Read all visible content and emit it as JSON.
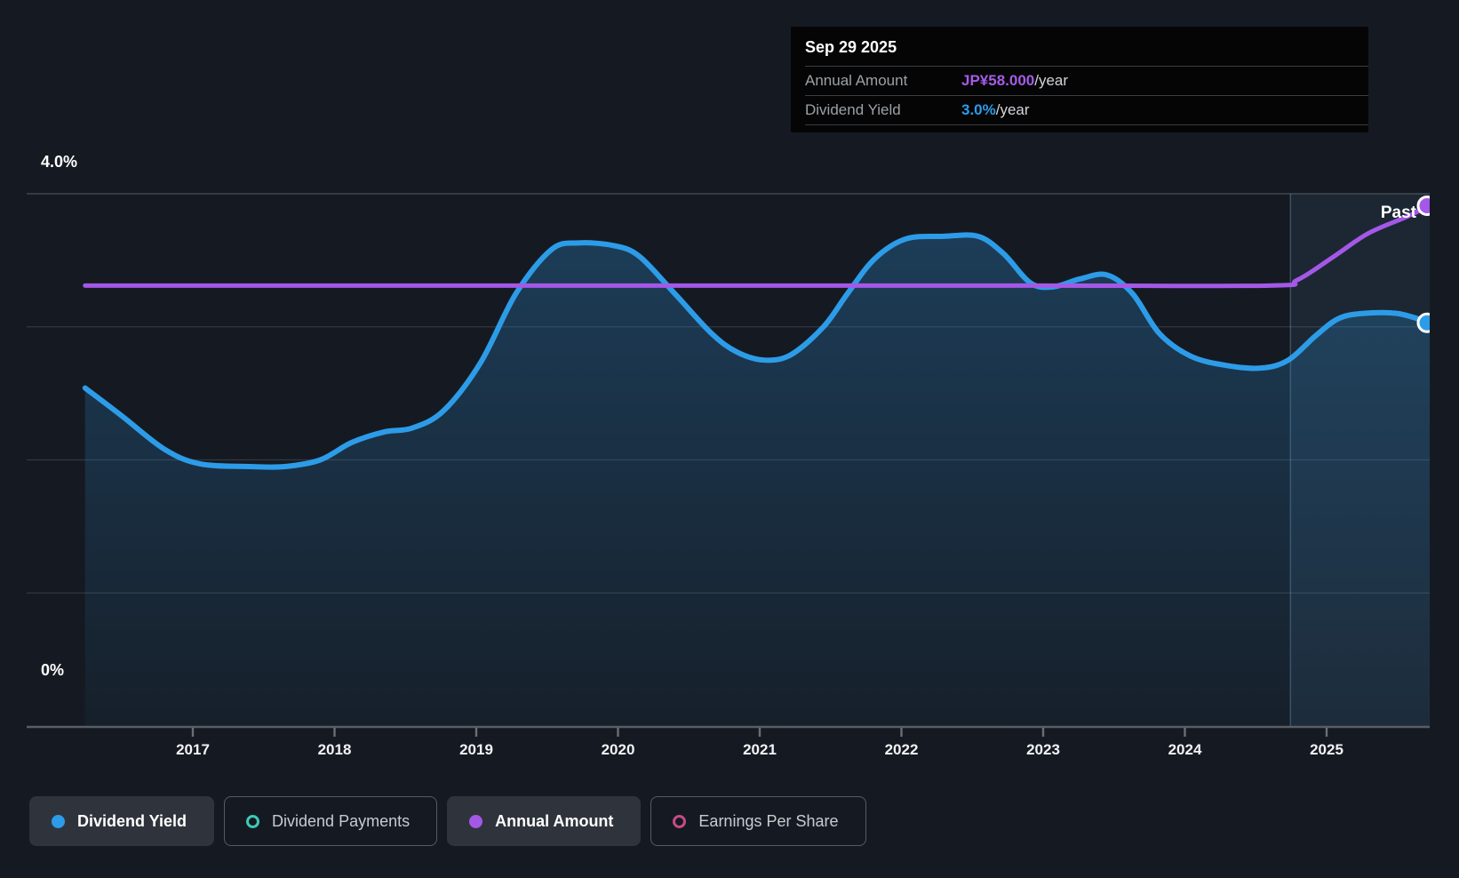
{
  "tooltip": {
    "date": "Sep 29 2025",
    "rows": [
      {
        "label": "Annual Amount",
        "value": "JP¥58.000",
        "suffix": "/year",
        "value_color": "#a55ce8"
      },
      {
        "label": "Dividend Yield",
        "value": "3.0%",
        "suffix": "/year",
        "value_color": "#2d9ce8"
      }
    ]
  },
  "axis": {
    "y_label_top": "4.0%",
    "y_label_bottom": "0%",
    "x_years": [
      "2017",
      "2018",
      "2019",
      "2020",
      "2021",
      "2022",
      "2023",
      "2024",
      "2025"
    ]
  },
  "annotations": {
    "past_label": "Past"
  },
  "legend": {
    "items": [
      {
        "label": "Dividend Yield",
        "marker": "filled-dot",
        "color": "#2d9ce8",
        "active": true
      },
      {
        "label": "Dividend Payments",
        "marker": "open-circle",
        "color": "#3ec9b6",
        "active": false
      },
      {
        "label": "Annual Amount",
        "marker": "filled-dot",
        "color": "#a458e7",
        "active": true
      },
      {
        "label": "Earnings Per Share",
        "marker": "open-circle",
        "color": "#c74a85",
        "active": false
      }
    ]
  },
  "colors": {
    "background": "#151a22",
    "dividend_yield_line": "#2d9ce8",
    "annual_amount_line": "#a458e7",
    "grid_top": "#41464d",
    "grid_inner": "#323840",
    "axis_line": "#595e64",
    "tooltip_bg": "#050506",
    "highlight_band": "rgba(98,155,210,0.10)"
  },
  "chart_data": {
    "type": "area",
    "title": "Dividend history chart",
    "x_range_years": [
      2016.24,
      2025.745
    ],
    "y_axis": {
      "min": 0,
      "max": 4,
      "unit": "%",
      "gridlines_pct": [
        1,
        2,
        3,
        4
      ],
      "labeled_ticks": [
        {
          "label": "4.0%",
          "pct": 4.0
        },
        {
          "label": "0%",
          "pct": 0.0
        }
      ]
    },
    "x_tick_years": [
      2017,
      2018,
      2019,
      2020,
      2021,
      2022,
      2023,
      2024,
      2025
    ],
    "highlight_band_years": [
      2024.745,
      2025.745
    ],
    "legend_position": "bottom",
    "series": [
      {
        "name": "Dividend Yield",
        "color": "#2d9ce8",
        "unit": "percent",
        "area_fill": true,
        "end_marker": true,
        "current_value": "3.0%/year",
        "points": [
          [
            2016.24,
            2.54
          ],
          [
            2016.5,
            2.33
          ],
          [
            2016.8,
            2.08
          ],
          [
            2017.05,
            1.97
          ],
          [
            2017.4,
            1.95
          ],
          [
            2017.65,
            1.95
          ],
          [
            2017.9,
            2.0
          ],
          [
            2018.12,
            2.13
          ],
          [
            2018.35,
            2.21
          ],
          [
            2018.55,
            2.24
          ],
          [
            2018.77,
            2.37
          ],
          [
            2019.03,
            2.73
          ],
          [
            2019.28,
            3.25
          ],
          [
            2019.53,
            3.58
          ],
          [
            2019.72,
            3.63
          ],
          [
            2019.97,
            3.61
          ],
          [
            2020.15,
            3.53
          ],
          [
            2020.4,
            3.25
          ],
          [
            2020.66,
            2.95
          ],
          [
            2020.84,
            2.81
          ],
          [
            2021.03,
            2.75
          ],
          [
            2021.22,
            2.79
          ],
          [
            2021.45,
            3.0
          ],
          [
            2021.62,
            3.25
          ],
          [
            2021.81,
            3.51
          ],
          [
            2022.03,
            3.66
          ],
          [
            2022.3,
            3.68
          ],
          [
            2022.54,
            3.68
          ],
          [
            2022.72,
            3.55
          ],
          [
            2022.91,
            3.33
          ],
          [
            2023.07,
            3.3
          ],
          [
            2023.26,
            3.36
          ],
          [
            2023.45,
            3.39
          ],
          [
            2023.63,
            3.25
          ],
          [
            2023.82,
            2.95
          ],
          [
            2024.04,
            2.78
          ],
          [
            2024.29,
            2.71
          ],
          [
            2024.54,
            2.69
          ],
          [
            2024.73,
            2.75
          ],
          [
            2024.92,
            2.93
          ],
          [
            2025.08,
            3.06
          ],
          [
            2025.25,
            3.1
          ],
          [
            2025.5,
            3.1
          ],
          [
            2025.73,
            3.03
          ]
        ]
      },
      {
        "name": "Annual Amount",
        "color": "#a458e7",
        "unit": "JPY_per_share_own_scale",
        "area_fill": false,
        "end_marker": true,
        "current_value": "JP¥58.000/year",
        "note": "flat history with increase in 2025; drawn against left axis equivalent positions",
        "points": [
          [
            2016.24,
            3.31
          ],
          [
            2020.0,
            3.31
          ],
          [
            2023.0,
            3.31
          ],
          [
            2024.6,
            3.31
          ],
          [
            2024.79,
            3.35
          ],
          [
            2025.04,
            3.52
          ],
          [
            2025.29,
            3.7
          ],
          [
            2025.55,
            3.82
          ],
          [
            2025.73,
            3.91
          ]
        ]
      }
    ]
  }
}
